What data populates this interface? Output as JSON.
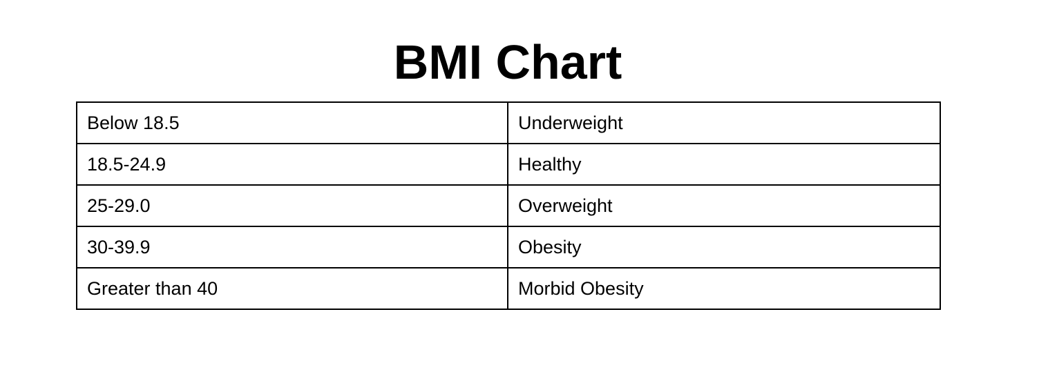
{
  "document": {
    "title": "BMI Chart",
    "table": {
      "rows": [
        {
          "range": "Below 18.5",
          "category": "Underweight"
        },
        {
          "range": "18.5-24.9",
          "category": "Healthy"
        },
        {
          "range": "25-29.0",
          "category": "Overweight"
        },
        {
          "range": "30-39.9",
          "category": "Obesity"
        },
        {
          "range": "Greater than 40",
          "category": "Morbid Obesity"
        }
      ]
    }
  }
}
